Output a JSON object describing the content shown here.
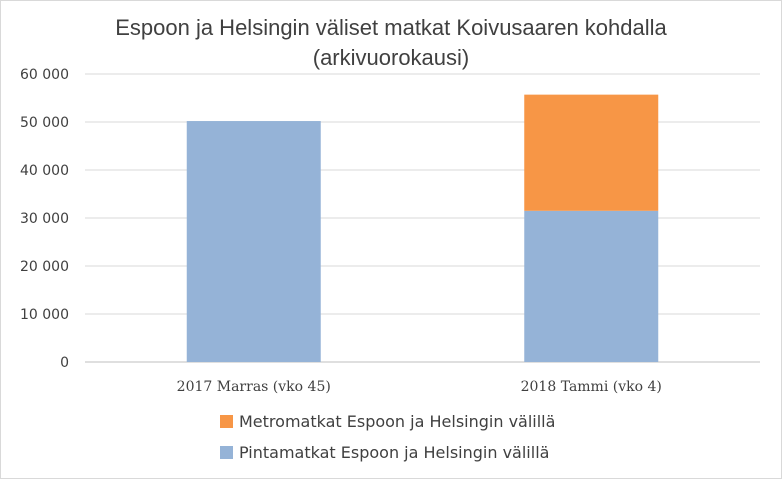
{
  "chart_data": {
    "type": "bar",
    "stacked": true,
    "title_lines": [
      "Espoon ja Helsingin väliset matkat Koivusaaren kohdalla",
      "(arkivuorokausi)"
    ],
    "xlabel": "",
    "ylabel": "",
    "categories": [
      "2017 Marras (vko 45)",
      "2018 Tammi (vko 4)"
    ],
    "y_ticks": [
      {
        "value": 0,
        "label": "0"
      },
      {
        "value": 10000,
        "label": "10 000"
      },
      {
        "value": 20000,
        "label": "20 000"
      },
      {
        "value": 30000,
        "label": "30 000"
      },
      {
        "value": 40000,
        "label": "40 000"
      },
      {
        "value": 50000,
        "label": "50 000"
      },
      {
        "value": 60000,
        "label": "60 000"
      }
    ],
    "ylim": [
      0,
      60000
    ],
    "grid": true,
    "legend_position": "bottom",
    "series": [
      {
        "name": "Pintamatkat Espoon ja Helsingin välillä",
        "color": "#95b3d7",
        "values": [
          50200,
          31500
        ]
      },
      {
        "name": "Metromatkat Espoon ja Helsingin välillä",
        "color": "#f79646",
        "values": [
          0,
          24200
        ]
      }
    ],
    "legend_order": [
      1,
      0
    ]
  }
}
